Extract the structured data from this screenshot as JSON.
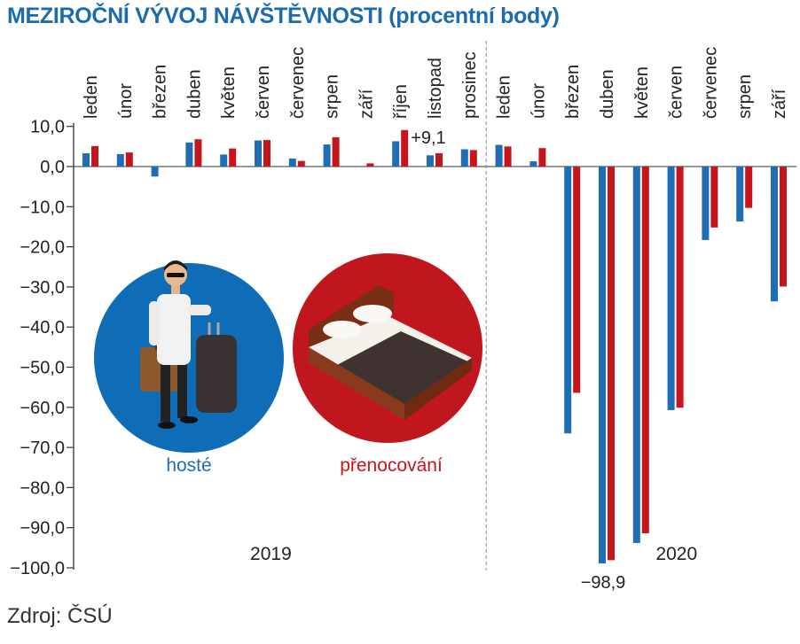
{
  "title": "MEZIROČNÍ VÝVOJ NÁVŠTĚVNOSTI (procentní body)",
  "source": "Zdroj: ČSÚ",
  "colors": {
    "title": "#1a6bb0",
    "hoste": "#1f6db5",
    "prenocovani": "#c4161c",
    "axis": "#333333",
    "divider": "#888888",
    "hoste_circle": "#0f6cb6",
    "prenocovani_circle": "#c0161d"
  },
  "chart_data": {
    "type": "bar",
    "categories": [
      "leden",
      "únor",
      "březen",
      "duben",
      "květen",
      "červen",
      "červenec",
      "srpen",
      "září",
      "říjen",
      "listopad",
      "prosinec",
      "leden",
      "únor",
      "březen",
      "duben",
      "květen",
      "červen",
      "červenec",
      "srpen",
      "září"
    ],
    "groups": [
      {
        "label": "2019",
        "start": 0,
        "end": 11
      },
      {
        "label": "2020",
        "start": 12,
        "end": 20
      }
    ],
    "series": [
      {
        "name": "hosté",
        "values": [
          3.3,
          3.1,
          -2.5,
          6.0,
          3.0,
          6.5,
          2.0,
          5.5,
          0.0,
          6.3,
          2.8,
          4.3,
          5.4,
          1.3,
          -66.5,
          -98.9,
          -93.8,
          -60.7,
          -18.3,
          -13.7,
          -33.6
        ]
      },
      {
        "name": "přenocování",
        "values": [
          5.1,
          3.5,
          0.0,
          6.8,
          4.5,
          6.6,
          1.4,
          7.3,
          0.8,
          9.1,
          3.3,
          4.1,
          5.0,
          4.6,
          -56.4,
          -98.1,
          -91.4,
          -60.1,
          -15.2,
          -10.3,
          -29.9
        ]
      }
    ],
    "annotations": [
      {
        "text": "+9,1",
        "series": 1,
        "index": 9
      },
      {
        "text": "−98,9",
        "series": 0,
        "index": 15
      }
    ],
    "yticks": [
      10,
      0,
      -10,
      -20,
      -30,
      -40,
      -50,
      -60,
      -70,
      -80,
      -90,
      -100
    ],
    "ytick_labels": [
      "10,0",
      "0,0",
      "−10,0",
      "−20,0",
      "−30,0",
      "−40,0",
      "−50,0",
      "−60,0",
      "−70,0",
      "−80,0",
      "−90,0",
      "−100,0"
    ],
    "ylim": [
      -100,
      10
    ],
    "grid": false,
    "legend": [
      {
        "label": "hosté",
        "icon": "traveler-with-luggage-icon"
      },
      {
        "label": "přenocování",
        "icon": "double-bed-icon"
      }
    ]
  }
}
